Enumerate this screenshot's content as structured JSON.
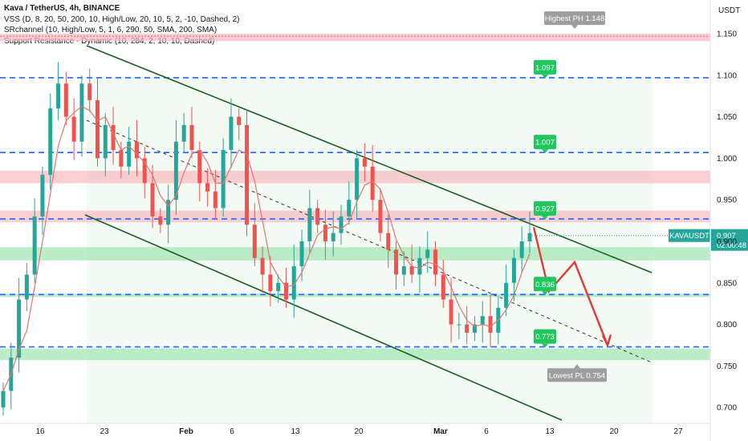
{
  "legend": {
    "title": "Kava / TetherUS, 4h, BINANCE",
    "lines": [
      "VSS (D, 8, 20, 50, 200, 10, High/Low, 20, 10, 5, 2, -10, Dashed, 2)",
      "SRchannel (10, High/Low, 5, 1, 6, 290, 50, SMA, 200, SMA)",
      "Support Resistance - Dynamic (10, 284, 2, 10, 10, Dashed)"
    ]
  },
  "price_axis": {
    "currency": "USDT",
    "ticks": [
      "1.150",
      "1.100",
      "1.050",
      "1.000",
      "0.950",
      "0.900",
      "0.850",
      "0.800",
      "0.750",
      "0.700"
    ]
  },
  "time_axis": {
    "ticks": [
      "16",
      "23",
      "Feb",
      "6",
      "13",
      "20",
      "Mar",
      "6",
      "13",
      "20",
      "27"
    ]
  },
  "current_price": {
    "symbol": "KAVAUSDT",
    "price": "0.907",
    "countdown": "02:00:48",
    "color": "#26a69a"
  },
  "level_tags": [
    {
      "label": "1.097",
      "price": 1.097,
      "color": "#22c55e"
    },
    {
      "label": "1.007",
      "price": 1.007,
      "color": "#22c55e"
    },
    {
      "label": "0.927",
      "price": 0.927,
      "color": "#22c55e"
    },
    {
      "label": "0.836",
      "price": 0.836,
      "color": "#22c55e"
    },
    {
      "label": "0.773",
      "price": 0.773,
      "color": "#22c55e"
    }
  ],
  "pivot_tags": {
    "high": "Highest PH 1.148",
    "low": "Lowest PL 0.754"
  },
  "colors": {
    "up": "#26a69a",
    "down": "#ef5350",
    "channel": "#1b5e20",
    "dashed_levels": "#2962ff",
    "resistance_zone": "#f8bbbf",
    "support_zone": "#a5e6b7",
    "projection": "#e53935"
  },
  "chart_data": {
    "type": "candlestick",
    "title": "Kava / TetherUS, 4h, BINANCE",
    "ylim": [
      0.69,
      1.16
    ],
    "x_ticks": [
      "16",
      "23",
      "Feb",
      "6",
      "13",
      "20",
      "Mar",
      "6",
      "13",
      "20",
      "27"
    ],
    "y_ticks": [
      0.7,
      0.75,
      0.8,
      0.85,
      0.9,
      0.95,
      1.0,
      1.05,
      1.1,
      1.15
    ],
    "last_price": 0.907,
    "closes": [
      0.72,
      0.76,
      0.83,
      0.86,
      0.93,
      0.98,
      1.06,
      1.09,
      1.05,
      1.02,
      1.09,
      1.07,
      1.0,
      1.04,
      1.01,
      0.99,
      1.02,
      1.0,
      0.97,
      0.93,
      0.92,
      0.95,
      1.02,
      1.04,
      1.01,
      0.97,
      0.96,
      0.94,
      1.01,
      1.05,
      1.04,
      0.92,
      0.88,
      0.86,
      0.84,
      0.85,
      0.83,
      0.87,
      0.9,
      0.94,
      0.92,
      0.9,
      0.91,
      0.93,
      0.95,
      1.0,
      0.99,
      0.95,
      0.91,
      0.89,
      0.86,
      0.87,
      0.86,
      0.88,
      0.89,
      0.86,
      0.83,
      0.8,
      0.8,
      0.79,
      0.8,
      0.81,
      0.79,
      0.82,
      0.85,
      0.88,
      0.9,
      0.91
    ],
    "levels": [
      1.097,
      1.007,
      0.927,
      0.836,
      0.773
    ],
    "pivots": {
      "highest": 1.148,
      "lowest": 0.754
    },
    "resistance_zones": [
      [
        1.141,
        1.15
      ],
      [
        0.97,
        0.985
      ],
      [
        0.923,
        0.937
      ]
    ],
    "support_zones": [
      [
        0.877,
        0.893
      ],
      [
        0.833,
        0.837
      ],
      [
        0.757,
        0.771
      ]
    ],
    "projection_path": [
      0.917,
      0.84,
      0.875,
      0.775
    ]
  }
}
